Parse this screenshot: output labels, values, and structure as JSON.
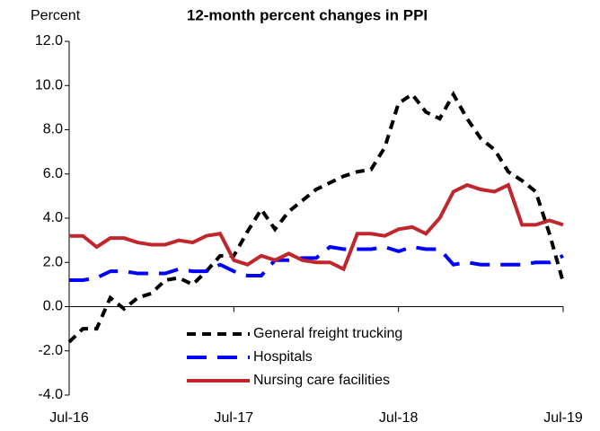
{
  "chart_data": {
    "type": "line",
    "title": "12-month percent changes in PPI",
    "y_label": "Percent",
    "categories": [
      "Jul-16",
      null,
      null,
      null,
      null,
      null,
      null,
      null,
      null,
      null,
      null,
      null,
      "Jul-17",
      null,
      null,
      null,
      null,
      null,
      null,
      null,
      null,
      null,
      null,
      null,
      "Jul-18",
      null,
      null,
      null,
      null,
      null,
      null,
      null,
      null,
      null,
      null,
      null,
      "Jul-19"
    ],
    "series": [
      {
        "name": "General freight trucking",
        "color": "#000000",
        "dash": "dashed",
        "values": [
          -1.6,
          -1.0,
          -1.0,
          0.4,
          -0.1,
          0.4,
          0.6,
          1.2,
          1.3,
          1.0,
          1.6,
          2.3,
          2.3,
          3.4,
          4.4,
          3.5,
          4.3,
          4.8,
          5.3,
          5.6,
          5.9,
          6.1,
          6.2,
          7.2,
          9.2,
          9.6,
          8.8,
          8.5,
          9.6,
          8.5,
          7.6,
          7.1,
          6.1,
          5.7,
          5.2,
          3.3,
          1.1
        ]
      },
      {
        "name": "Hospitals",
        "color": "#0000ff",
        "dash": "long-dashed",
        "values": [
          1.2,
          1.2,
          1.3,
          1.6,
          1.6,
          1.5,
          1.5,
          1.5,
          1.7,
          1.6,
          1.6,
          1.9,
          1.6,
          1.4,
          1.4,
          2.1,
          2.1,
          2.2,
          2.2,
          2.7,
          2.6,
          2.6,
          2.6,
          2.7,
          2.5,
          2.7,
          2.6,
          2.6,
          1.9,
          2.0,
          1.9,
          1.9,
          1.9,
          1.9,
          2.0,
          2.0,
          2.3
        ]
      },
      {
        "name": "Nursing care facilities",
        "color": "#c0272d",
        "dash": "solid",
        "values": [
          3.2,
          3.2,
          2.7,
          3.1,
          3.1,
          2.9,
          2.8,
          2.8,
          3.0,
          2.9,
          3.2,
          3.3,
          2.1,
          1.9,
          2.3,
          2.1,
          2.4,
          2.1,
          2.0,
          2.0,
          1.7,
          3.3,
          3.3,
          3.2,
          3.5,
          3.6,
          3.3,
          4.0,
          5.2,
          5.5,
          5.3,
          5.2,
          5.5,
          3.7,
          3.7,
          3.9,
          3.7
        ]
      }
    ],
    "ylim": [
      -4,
      12
    ],
    "yticks": [
      {
        "value": -4,
        "label": "-4.0"
      },
      {
        "value": -2,
        "label": "-2.0"
      },
      {
        "value": 0,
        "label": "0.0"
      },
      {
        "value": 2,
        "label": "2.0"
      },
      {
        "value": 4,
        "label": "4.0"
      },
      {
        "value": 6,
        "label": "6.0"
      },
      {
        "value": 8,
        "label": "8.0"
      },
      {
        "value": 10,
        "label": "10.0"
      },
      {
        "value": 12,
        "label": "12.0"
      }
    ],
    "grid": false,
    "legend": "bottom"
  }
}
